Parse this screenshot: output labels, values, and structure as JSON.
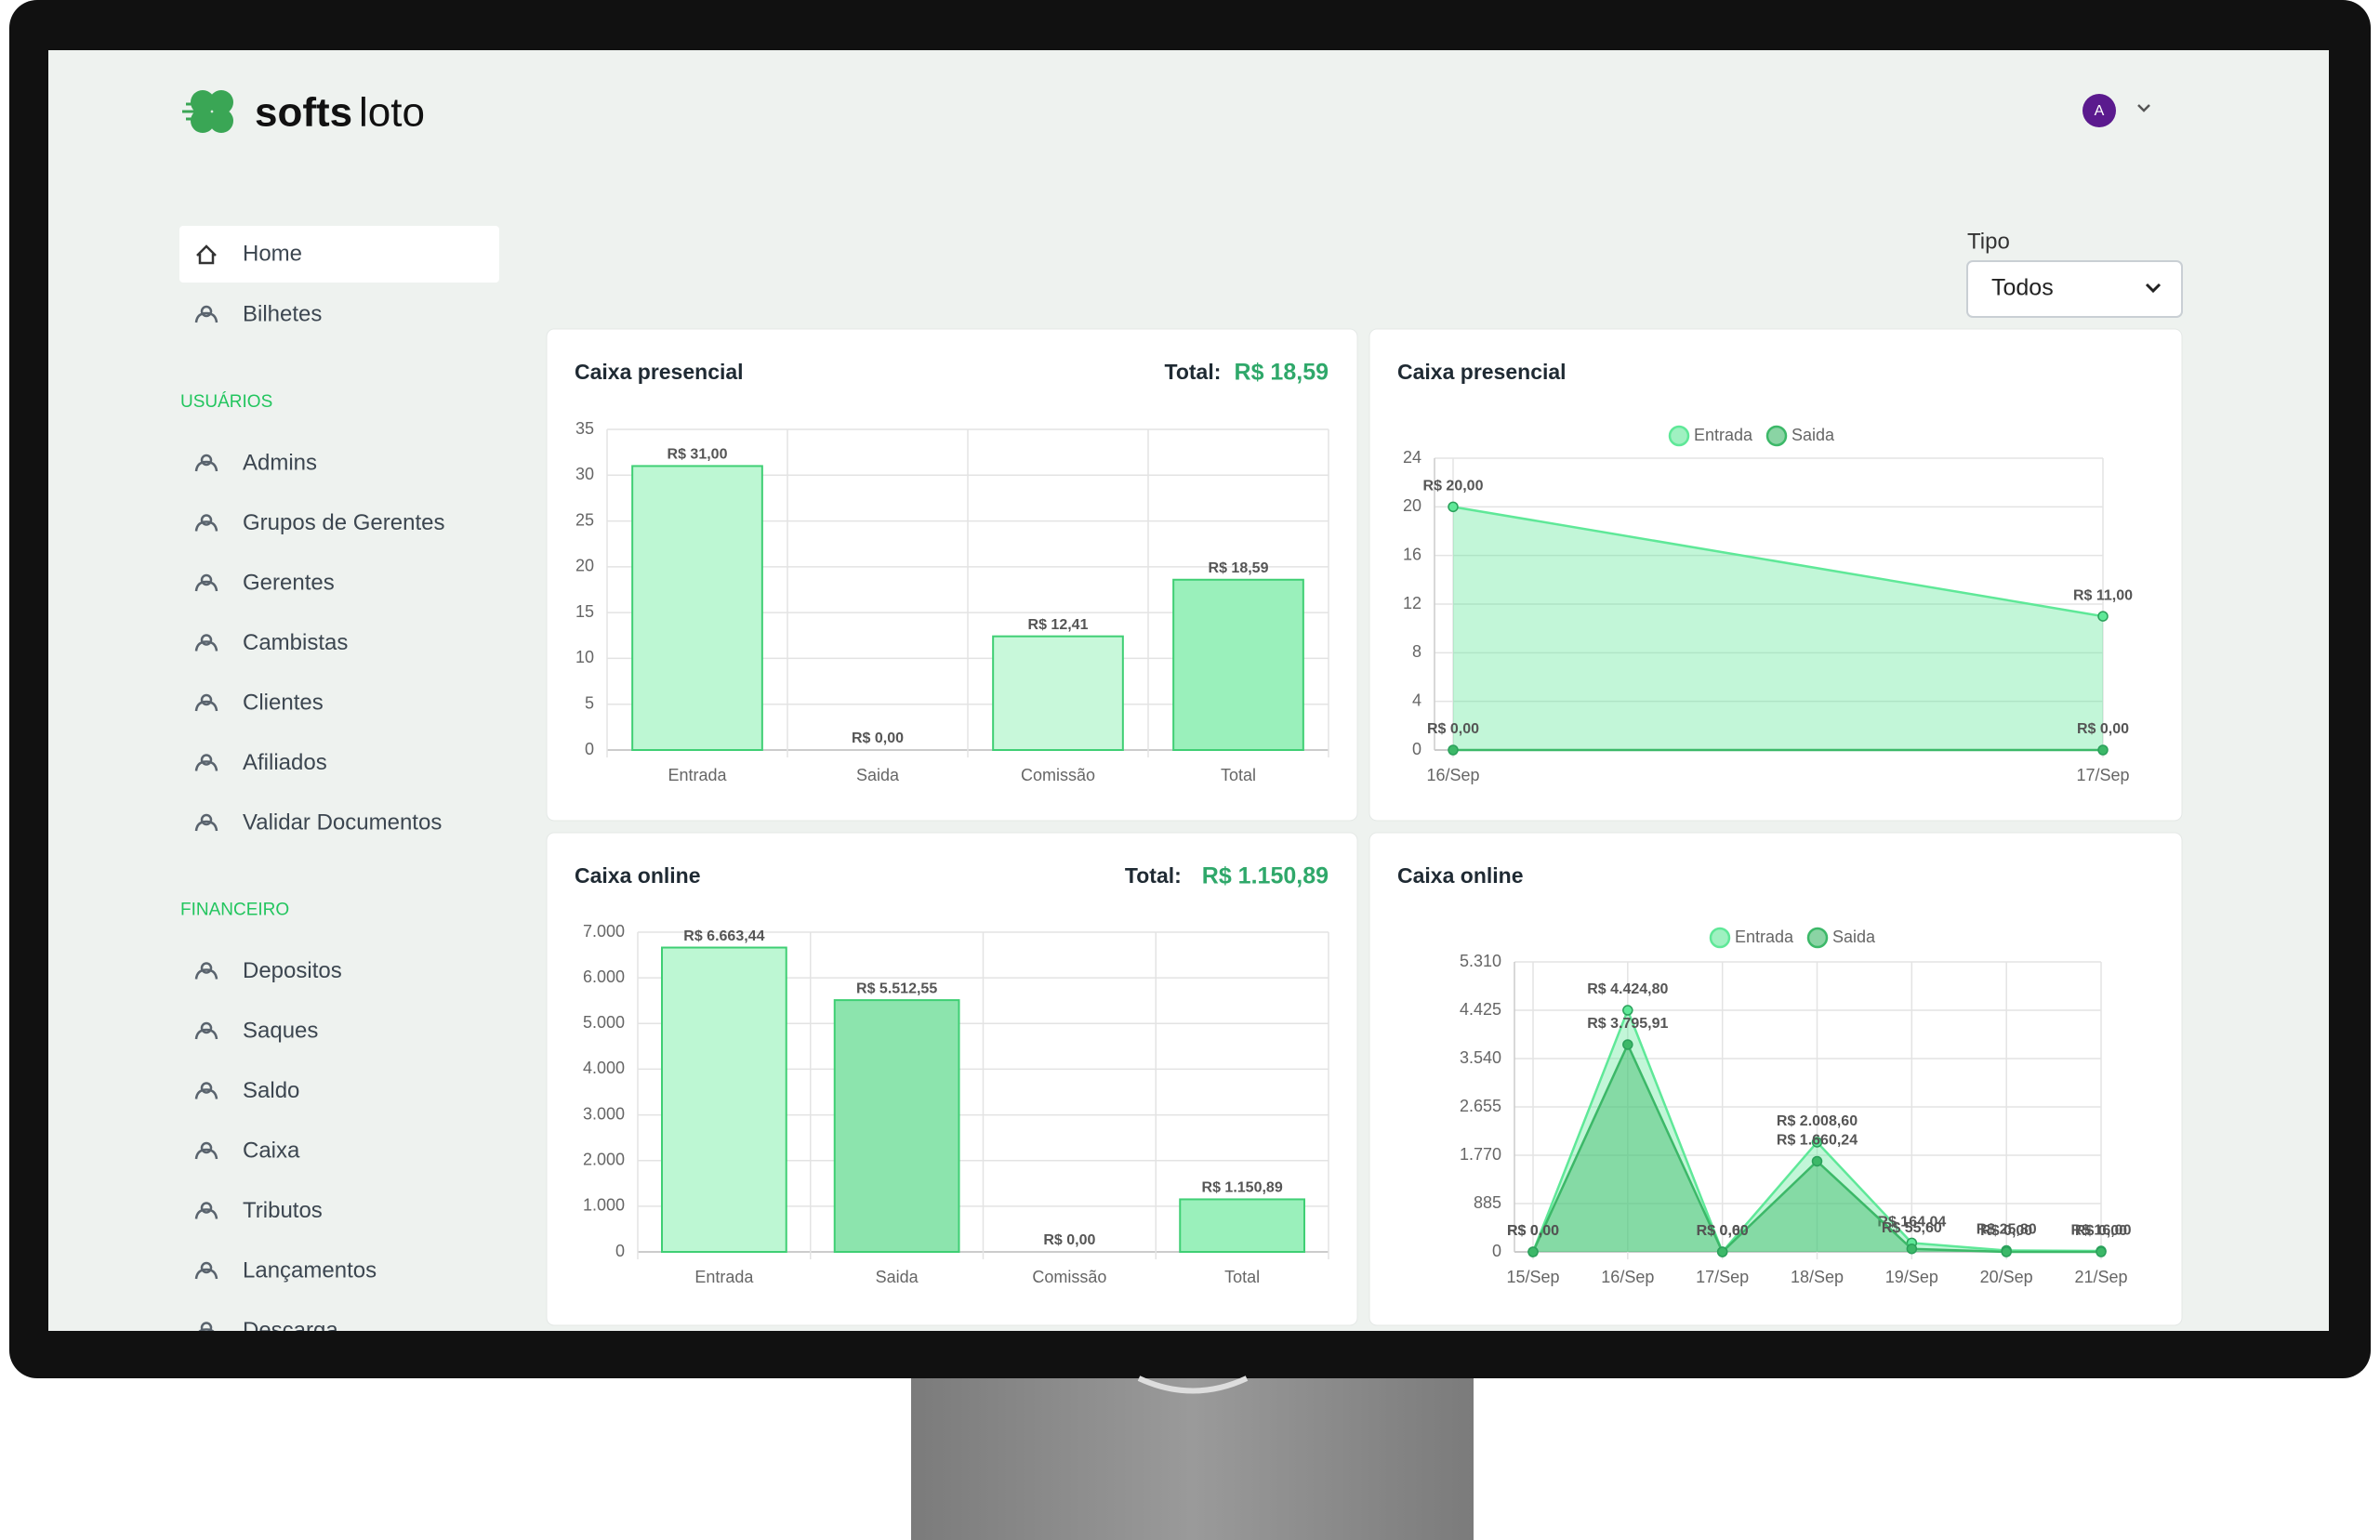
{
  "header": {
    "logo_bold": "softs",
    "logo_light": "loto",
    "avatar": "A"
  },
  "sidebar": {
    "items": [
      "Home",
      "Bilhetes"
    ],
    "sections": [
      {
        "title": "USUÁRIOS",
        "items": [
          "Admins",
          "Grupos de Gerentes",
          "Gerentes",
          "Cambistas",
          "Clientes",
          "Afiliados",
          "Validar Documentos"
        ]
      },
      {
        "title": "FINANCEIRO",
        "items": [
          "Depositos",
          "Saques",
          "Saldo",
          "Caixa",
          "Tributos",
          "Lançamentos",
          "Descarga"
        ]
      }
    ]
  },
  "filter": {
    "label": "Tipo",
    "value": "Todos"
  },
  "chart_data": [
    {
      "type": "bar",
      "title": "Caixa presencial",
      "total_label": "Total:",
      "total": "R$ 18,59",
      "categories": [
        "Entrada",
        "Saida",
        "Comissão",
        "Total"
      ],
      "values": [
        31,
        0,
        12.41,
        18.59
      ],
      "value_labels": [
        "R$ 31,00",
        "R$ 0,00",
        "R$ 12,41",
        "R$ 18,59"
      ],
      "colors": [
        "#bdf7d3",
        "#9ee8b9",
        "#c8f8da",
        "#9af0bb"
      ],
      "ylim": [
        0,
        35
      ],
      "yticks": [
        0,
        5,
        10,
        15,
        20,
        25,
        30,
        35
      ],
      "grid": true
    },
    {
      "type": "area",
      "title": "Caixa presencial",
      "categories": [
        "16/Sep",
        "17/Sep"
      ],
      "series": [
        {
          "name": "Entrada",
          "color": "#5fe898",
          "values": [
            20,
            11
          ],
          "value_labels": [
            "R$ 20,00",
            "R$ 11,00"
          ]
        },
        {
          "name": "Saida",
          "color": "#3cb868",
          "values": [
            0,
            0
          ],
          "value_labels": [
            "R$ 0,00",
            "R$ 0,00"
          ]
        }
      ],
      "ylim": [
        0,
        24
      ],
      "yticks": [
        0,
        4,
        8,
        12,
        16,
        20,
        24
      ],
      "grid": true
    },
    {
      "type": "bar",
      "title": "Caixa online",
      "total_label": "Total:",
      "total": "R$ 1.150,89",
      "categories": [
        "Entrada",
        "Saida",
        "Comissão",
        "Total"
      ],
      "values": [
        6663.44,
        5512.55,
        0,
        1150.89
      ],
      "value_labels": [
        "R$ 6.663,44",
        "R$ 5.512,55",
        "R$ 0,00",
        "R$ 1.150,89"
      ],
      "colors": [
        "#bdf7d3",
        "#8ce4ad",
        "#c8f8da",
        "#9af0bb"
      ],
      "ylim": [
        0,
        7000
      ],
      "yticks": [
        0,
        {
          "value": 1000,
          "label": "1.000"
        },
        {
          "value": 2000,
          "label": "2.000"
        },
        {
          "value": 3000,
          "label": "3.000"
        },
        {
          "value": 4000,
          "label": "4.000"
        },
        {
          "value": 5000,
          "label": "5.000"
        },
        {
          "value": 6000,
          "label": "6.000"
        },
        {
          "value": 7000,
          "label": "7.000"
        }
      ],
      "grid": true
    },
    {
      "type": "area",
      "title": "Caixa online",
      "categories": [
        "15/Sep",
        "16/Sep",
        "17/Sep",
        "18/Sep",
        "19/Sep",
        "20/Sep",
        "21/Sep"
      ],
      "series": [
        {
          "name": "Entrada",
          "color": "#5fe898",
          "values": [
            0,
            4424.8,
            0.6,
            2008.6,
            164.04,
            25.8,
            16
          ],
          "value_labels": [
            "R$ 0,00",
            "R$ 4.424,80",
            "R$ 0,60",
            "R$ 2.008,60",
            "R$ 164,04",
            "R$ 25,80",
            "R$ 16,00"
          ]
        },
        {
          "name": "Saida",
          "color": "#3cb868",
          "values": [
            0,
            3795.91,
            0,
            1660.24,
            55.6,
            0,
            0
          ],
          "value_labels": [
            "R$ 0,00",
            "R$ 3.795,91",
            "R$ 0,00",
            "R$ 1.660,24",
            "R$ 55,60",
            "R$ 0,00",
            "R$ 0,00"
          ]
        }
      ],
      "ylim": [
        0,
        5310
      ],
      "yticks": [
        0,
        885,
        {
          "value": 1770,
          "label": "1.770"
        },
        {
          "value": 2655,
          "label": "2.655"
        },
        {
          "value": 3540,
          "label": "3.540"
        },
        {
          "value": 4425,
          "label": "4.425"
        },
        {
          "value": 5310,
          "label": "5.310"
        }
      ],
      "grid": true
    }
  ]
}
